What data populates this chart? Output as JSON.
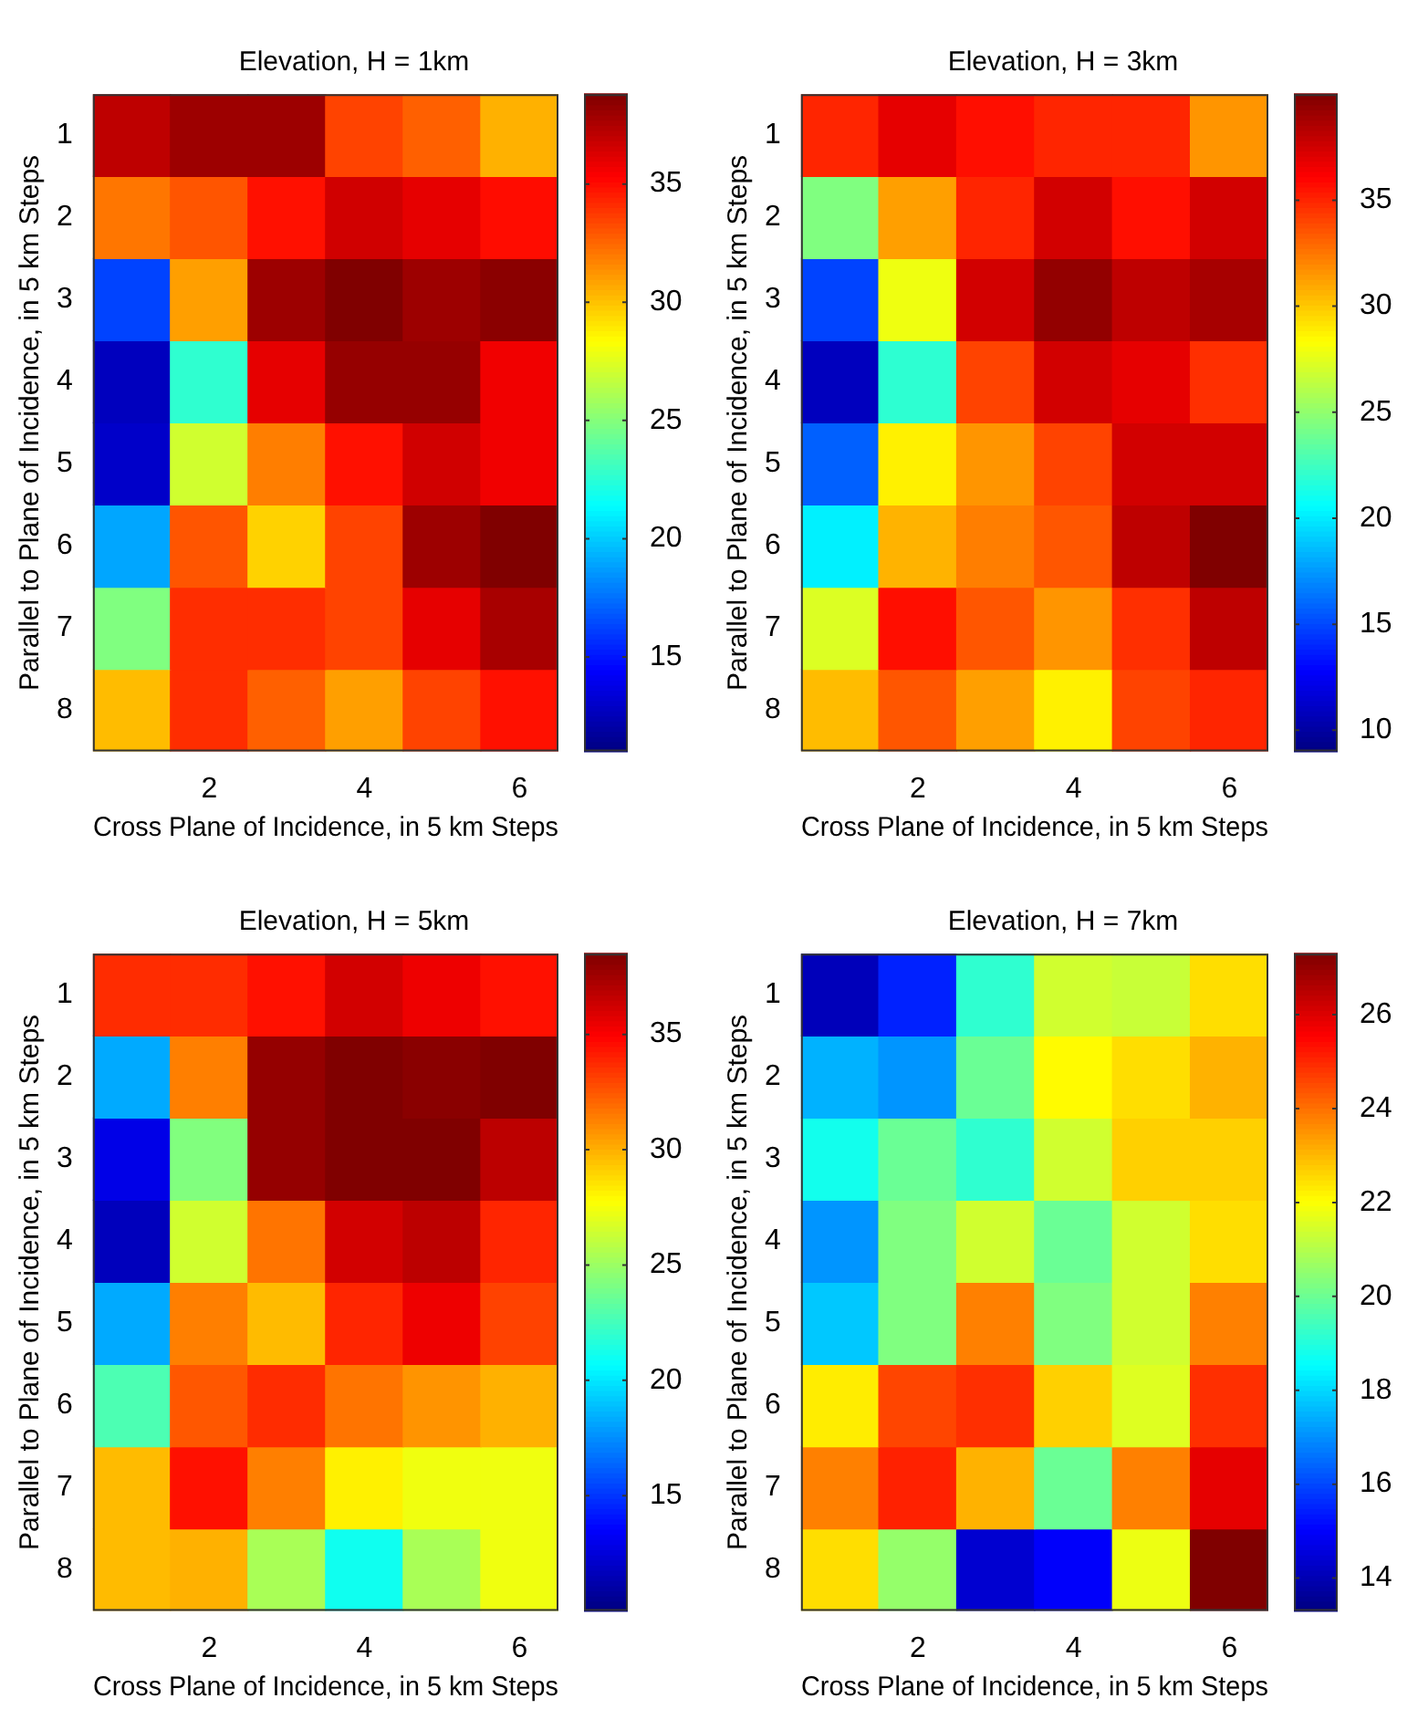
{
  "chart_data": [
    {
      "type": "heatmap",
      "title": "Elevation, H = 1km",
      "xlabel": "Cross Plane of Incidence, in 5 km Steps",
      "ylabel": "Parallel to Plane of Incidence, in 5 km Steps",
      "categories": [
        null,
        "2",
        null,
        "4",
        null,
        "6"
      ],
      "y_categories": [
        "1",
        "2",
        "3",
        "4",
        "5",
        "6",
        "7",
        "8"
      ],
      "clim": [
        11,
        38.8
      ],
      "cticks": [
        15,
        20,
        25,
        30,
        35
      ],
      "cells": [
        [
          37.1,
          38,
          38,
          33.5,
          32.7,
          30.5
        ],
        [
          32.1,
          33,
          34.9,
          36.6,
          36,
          35
        ],
        [
          16.3,
          31,
          38,
          38.8,
          38,
          38.5
        ],
        [
          12.7,
          22.7,
          36,
          38.2,
          38.2,
          35.7
        ],
        [
          13,
          27.1,
          31.9,
          34.9,
          36.6,
          35.7
        ],
        [
          19,
          33,
          29.6,
          33.5,
          38,
          38.8
        ],
        [
          24.9,
          34.1,
          34.1,
          33.5,
          36,
          37.7
        ],
        [
          30.2,
          34.1,
          32.7,
          31,
          33.5,
          34.9
        ]
      ]
    },
    {
      "type": "heatmap",
      "title": "Elevation, H = 3km",
      "xlabel": "Cross Plane of Incidence, in 5 km Steps",
      "ylabel": "Parallel to Plane of Incidence, in 5 km Steps",
      "categories": [
        null,
        "2",
        null,
        "4",
        null,
        "6"
      ],
      "y_categories": [
        "1",
        "2",
        "3",
        "4",
        "5",
        "6",
        "7",
        "8"
      ],
      "clim": [
        9,
        40
      ],
      "cticks": [
        10,
        15,
        20,
        25,
        30,
        35
      ],
      "cells": [
        [
          35,
          36.9,
          35.7,
          35,
          35,
          31.6
        ],
        [
          24.5,
          31.3,
          35,
          37.5,
          35.7,
          37.5
        ],
        [
          14.9,
          27.9,
          37.5,
          39.4,
          38.1,
          38.8
        ],
        [
          10.9,
          22,
          34.1,
          37.5,
          36.9,
          34.7
        ],
        [
          15.8,
          28.8,
          31.6,
          34.1,
          37.5,
          37.5
        ],
        [
          20.2,
          30.7,
          32.3,
          33.5,
          38.1,
          40
        ],
        [
          27.3,
          35.7,
          33.5,
          31.6,
          34.7,
          38.1
        ],
        [
          30.4,
          33.5,
          31.3,
          28.8,
          34.1,
          35
        ]
      ]
    },
    {
      "type": "heatmap",
      "title": "Elevation, H = 5km",
      "xlabel": "Cross Plane of Incidence, in 5 km Steps",
      "ylabel": "Parallel to Plane of Incidence, in 5 km Steps",
      "categories": [
        null,
        "2",
        null,
        "4",
        null,
        "6"
      ],
      "y_categories": [
        "1",
        "2",
        "3",
        "4",
        "5",
        "6",
        "7",
        "8"
      ],
      "clim": [
        10,
        38.5
      ],
      "cticks": [
        15,
        20,
        25,
        30,
        35
      ],
      "cells": [
        [
          33.7,
          33.7,
          34.5,
          36.2,
          35.4,
          34.5
        ],
        [
          18.3,
          31.4,
          37.9,
          38.5,
          38.2,
          38.5
        ],
        [
          12.9,
          24.3,
          37.9,
          38.5,
          38.5,
          36.8
        ],
        [
          11.7,
          26.5,
          31.7,
          36.2,
          36.8,
          33.9
        ],
        [
          18.3,
          31.4,
          29.7,
          33.9,
          35.4,
          33.1
        ],
        [
          22.8,
          32.5,
          33.7,
          31.7,
          30.8,
          30
        ],
        [
          29.7,
          34.5,
          31.4,
          28.2,
          27.4,
          27.4
        ],
        [
          29.7,
          30,
          25.4,
          21.1,
          25.4,
          27.4
        ]
      ]
    },
    {
      "type": "heatmap",
      "title": "Elevation, H = 7km",
      "xlabel": "Cross Plane of Incidence, in 5 km Steps",
      "ylabel": "Parallel to Plane of Incidence, in 5 km Steps",
      "categories": [
        null,
        "2",
        null,
        "4",
        null,
        "6"
      ],
      "y_categories": [
        "1",
        "2",
        "3",
        "4",
        "5",
        "6",
        "7",
        "8"
      ],
      "clim": [
        13.3,
        27.3
      ],
      "cticks": [
        14,
        16,
        18,
        20,
        22,
        24,
        26
      ],
      "cells": [
        [
          14.1,
          15.5,
          19.2,
          21.4,
          21.3,
          22.5
        ],
        [
          17.5,
          17.1,
          20,
          22.1,
          22.5,
          23.1
        ],
        [
          18.8,
          20,
          19.2,
          21.4,
          22.7,
          22.7
        ],
        [
          17.1,
          20.3,
          21.4,
          20,
          21.4,
          22.5
        ],
        [
          17.8,
          20.3,
          23.8,
          20.3,
          21.4,
          23.8
        ],
        [
          22.3,
          24.6,
          24.9,
          22.7,
          21.6,
          24.9
        ],
        [
          23.8,
          25.1,
          23.1,
          20,
          23.8,
          25.9
        ],
        [
          22.5,
          20.6,
          14.4,
          15,
          21.8,
          27.3
        ]
      ]
    }
  ]
}
